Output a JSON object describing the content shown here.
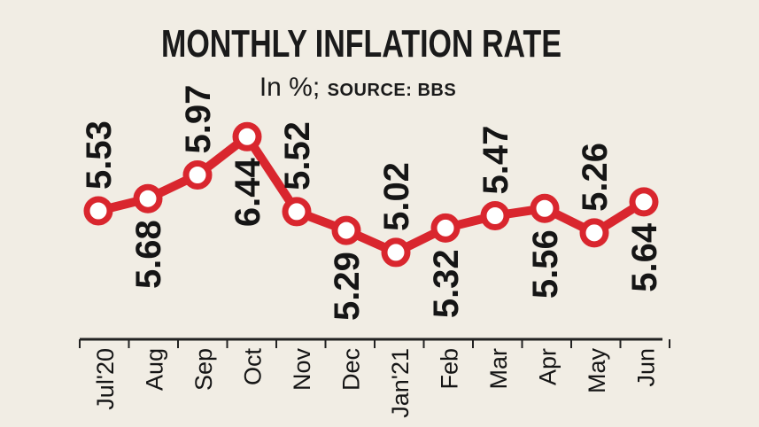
{
  "chart_data": {
    "type": "line",
    "title": "MONTHLY INFLATION RATE",
    "unit_label": "In %;",
    "source_label": "SOURCE: BBS",
    "categories": [
      "Jul'20",
      "Aug",
      "Sep",
      "Oct",
      "Nov",
      "Dec",
      "Jan'21",
      "Feb",
      "Mar",
      "Apr",
      "May",
      "Jun"
    ],
    "values": [
      5.53,
      5.68,
      5.97,
      6.44,
      5.52,
      5.29,
      5.02,
      5.32,
      5.47,
      5.56,
      5.26,
      5.64
    ],
    "value_labels": [
      "5.53",
      "5.68",
      "5.97",
      "6.44",
      "5.52",
      "5.29",
      "5.02",
      "5.32",
      "5.47",
      "5.56",
      "5.26",
      "5.64"
    ],
    "colors": {
      "line": "#d9262e",
      "marker_fill": "#ffffff",
      "axis": "#222222",
      "background": "#f1ede4"
    }
  }
}
